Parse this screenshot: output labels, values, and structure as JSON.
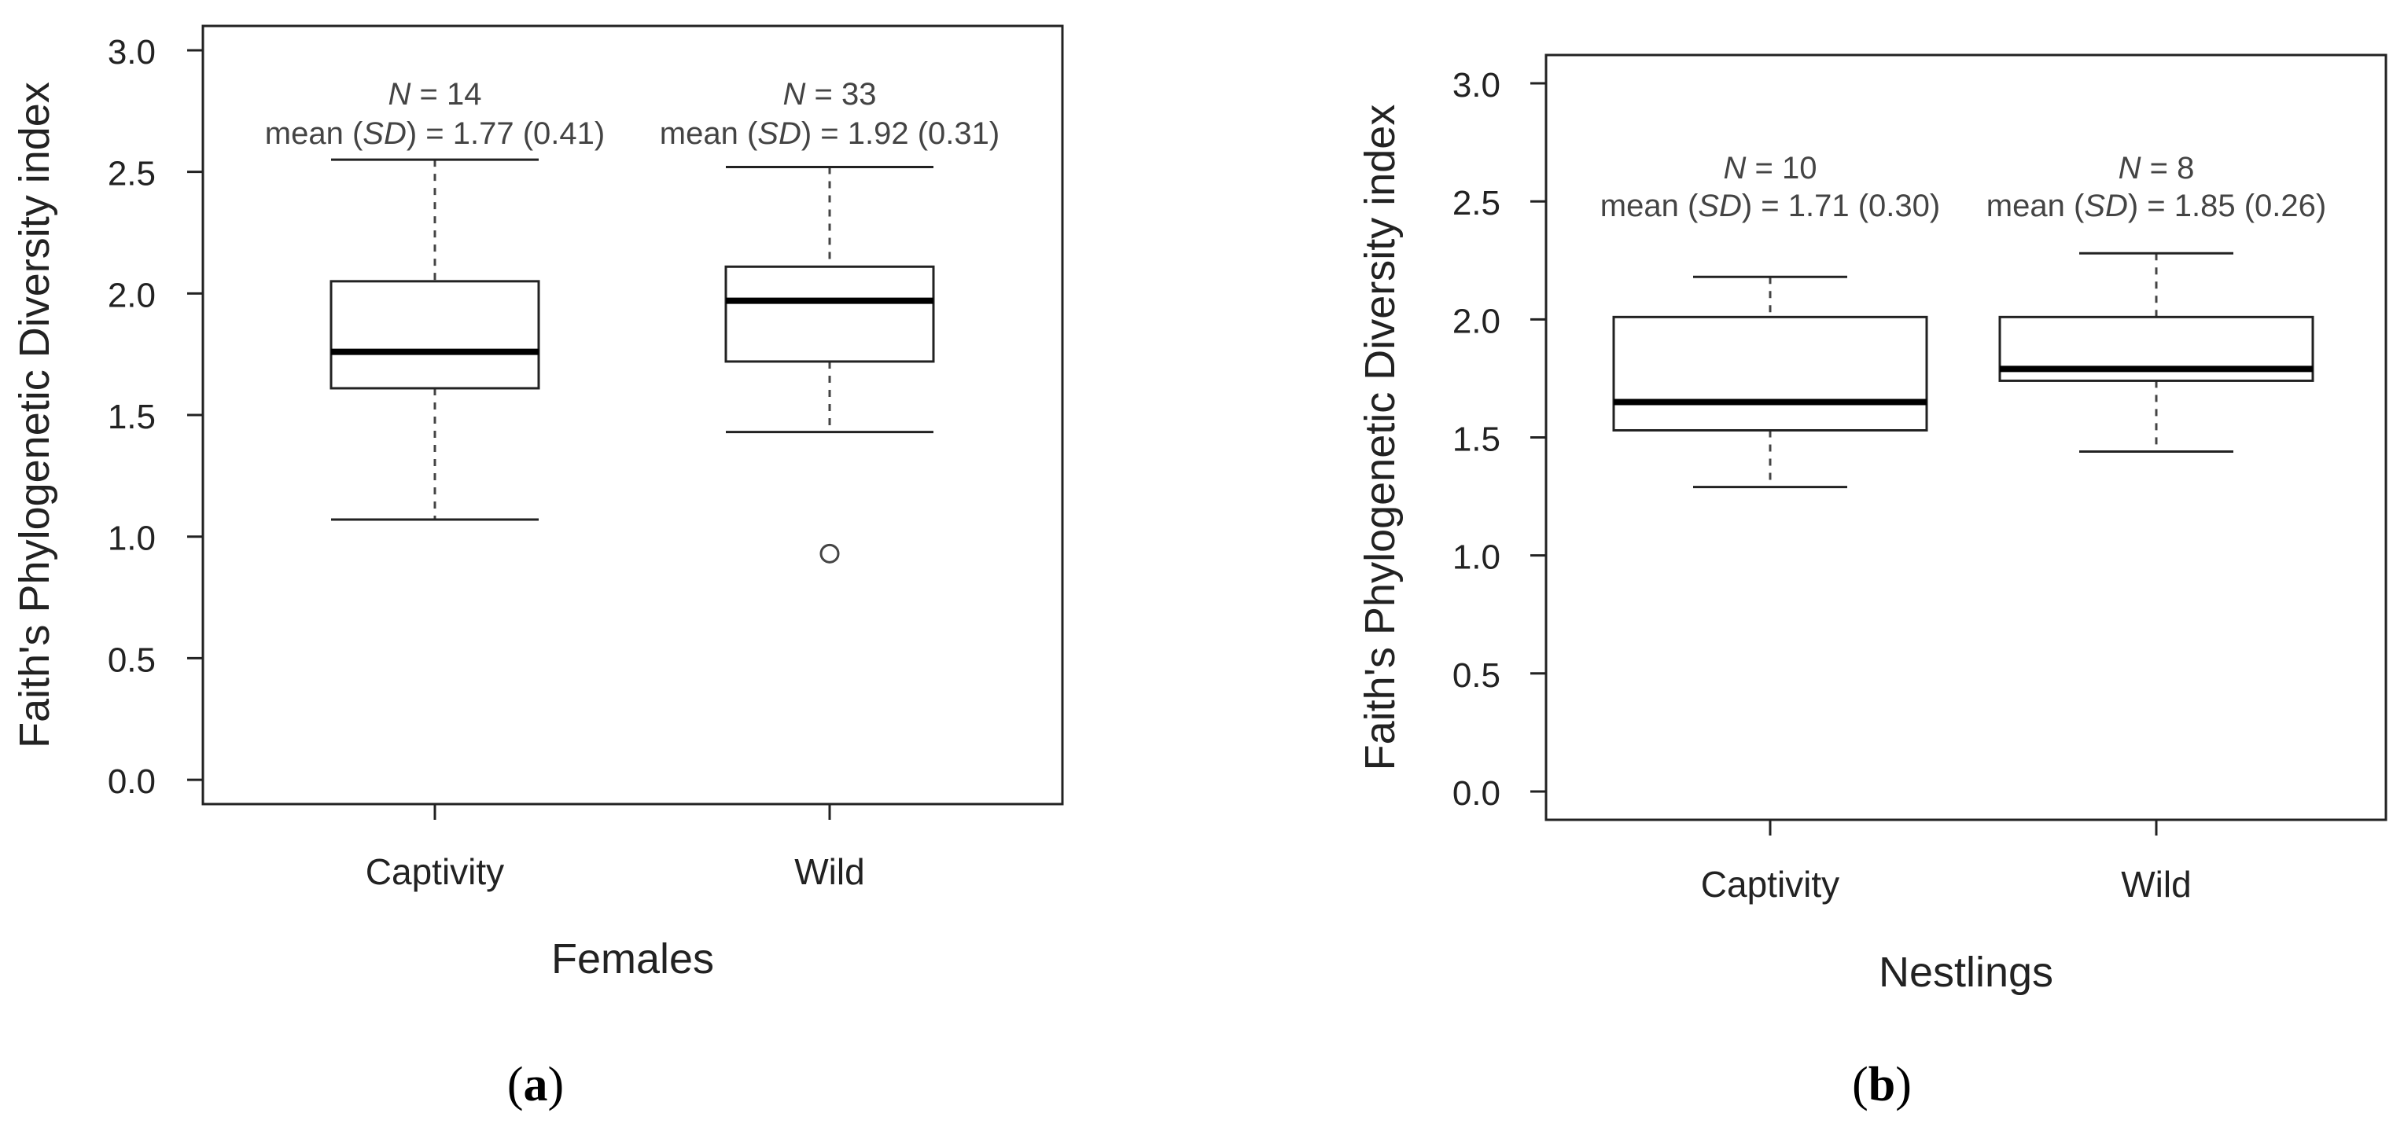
{
  "chart_data": [
    {
      "type": "box",
      "panel_label": "(a)",
      "xlabel": "Females",
      "ylabel": "Faith's Phylogenetic Diversity index",
      "ylim": [
        -0.1,
        3.1
      ],
      "yticks": [
        "0.0",
        "0.5",
        "1.0",
        "1.5",
        "2.0",
        "2.5",
        "3.0"
      ],
      "categories": [
        "Captivity",
        "Wild"
      ],
      "boxes": [
        {
          "category": "Captivity",
          "n_label": "N = 14",
          "mean_label": "mean (SD) = 1.77 (0.41)",
          "whisker_low": 1.07,
          "q1": 1.61,
          "median": 1.76,
          "q3": 2.05,
          "whisker_high": 2.55,
          "outliers": []
        },
        {
          "category": "Wild",
          "n_label": "N = 33",
          "mean_label": "mean (SD) = 1.92 (0.31)",
          "whisker_low": 1.43,
          "q1": 1.72,
          "median": 1.97,
          "q3": 2.11,
          "whisker_high": 2.52,
          "outliers": [
            0.93
          ]
        }
      ]
    },
    {
      "type": "box",
      "panel_label": "(b)",
      "xlabel": "Nestlings",
      "ylabel": "Faith's Phylogenetic Diversity index",
      "ylim": [
        -0.12,
        3.12
      ],
      "yticks": [
        "0.0",
        "0.5",
        "1.0",
        "1.5",
        "2.0",
        "2.5",
        "3.0"
      ],
      "categories": [
        "Captivity",
        "Wild"
      ],
      "boxes": [
        {
          "category": "Captivity",
          "n_label": "N = 10",
          "mean_label": "mean (SD) = 1.71 (0.30)",
          "whisker_low": 1.29,
          "q1": 1.53,
          "median": 1.65,
          "q3": 2.01,
          "whisker_high": 2.18,
          "outliers": []
        },
        {
          "category": "Wild",
          "n_label": "N = 8",
          "mean_label": "mean (SD) = 1.85 (0.26)",
          "whisker_low": 1.44,
          "q1": 1.74,
          "median": 1.79,
          "q3": 2.01,
          "whisker_high": 2.28,
          "outliers": []
        }
      ]
    }
  ]
}
